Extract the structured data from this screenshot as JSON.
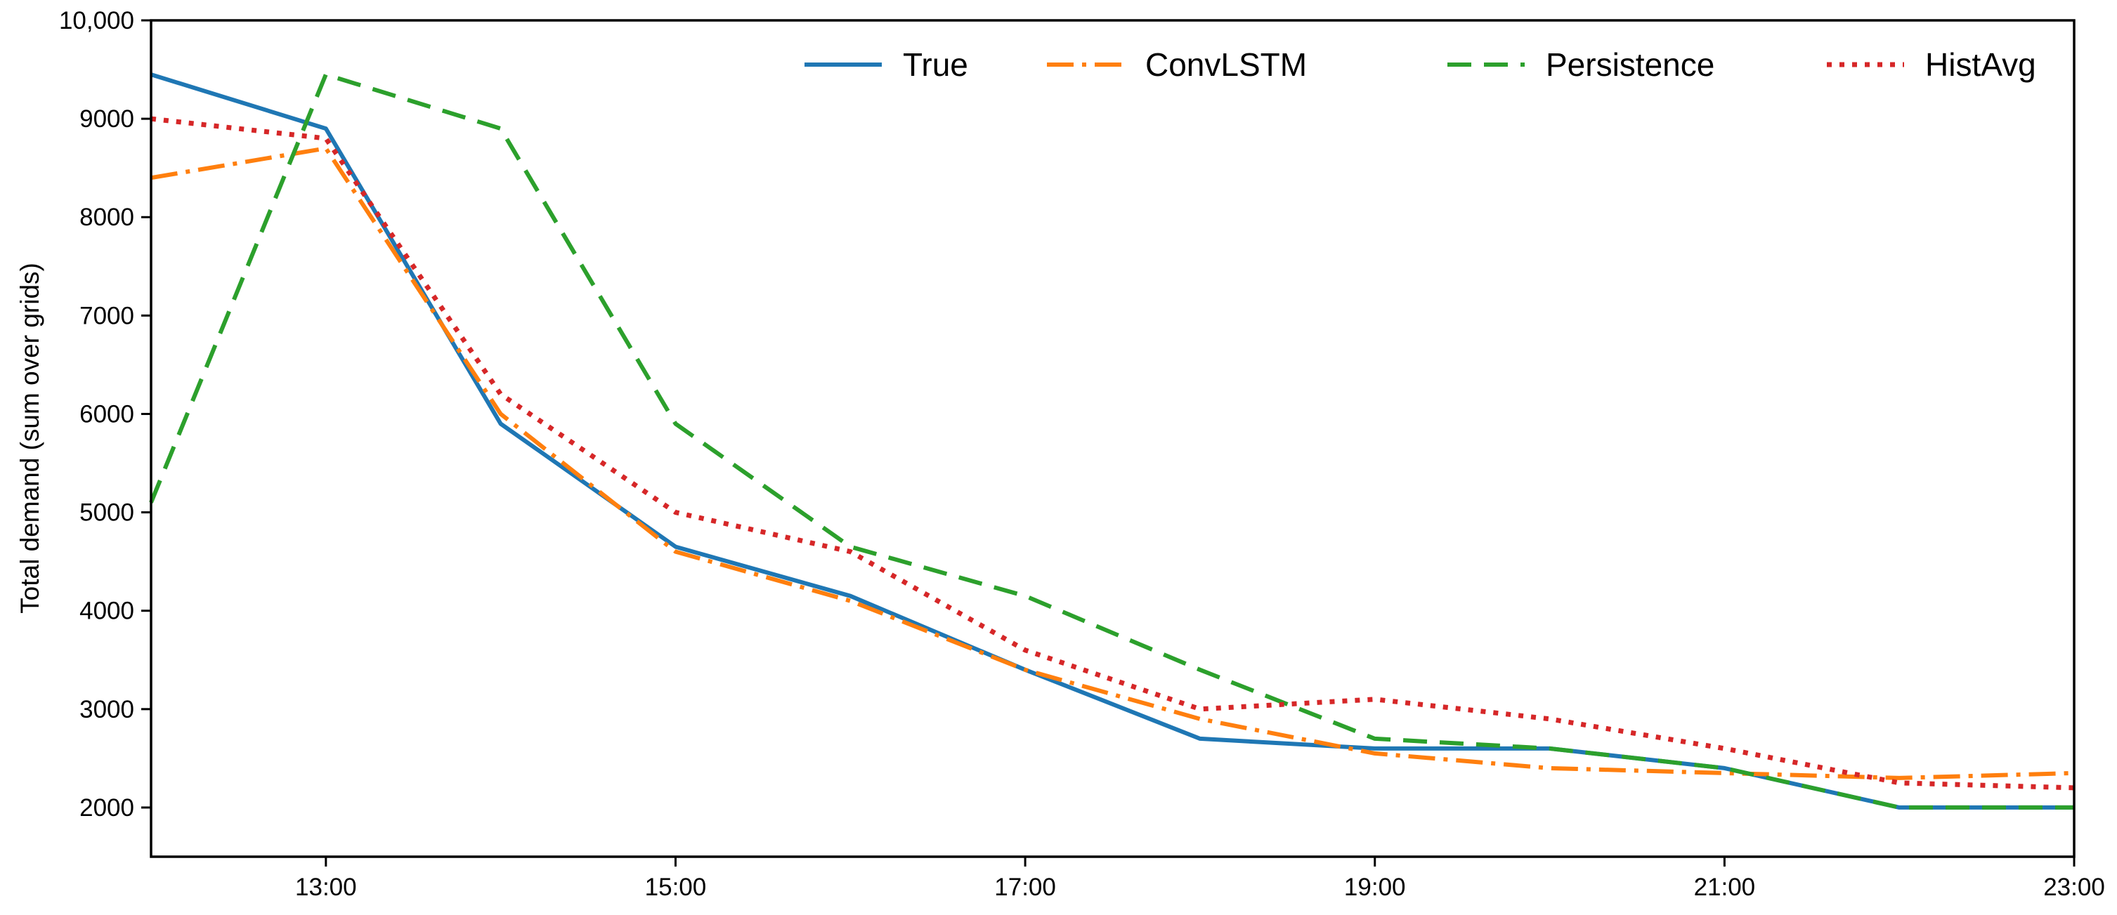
{
  "chart_data": {
    "type": "line",
    "title": "",
    "xlabel": "",
    "ylabel": "Total demand (sum over grids)",
    "x": [
      12,
      13,
      14,
      15,
      16,
      17,
      18,
      19,
      20,
      21,
      22,
      23
    ],
    "xlim": [
      12,
      23
    ],
    "ylim": [
      1500,
      10000
    ],
    "x_ticks": [
      {
        "value": 13,
        "label": "13:00"
      },
      {
        "value": 15,
        "label": "15:00"
      },
      {
        "value": 17,
        "label": "17:00"
      },
      {
        "value": 19,
        "label": "19:00"
      },
      {
        "value": 21,
        "label": "21:00"
      },
      {
        "value": 23,
        "label": "23:00"
      }
    ],
    "y_ticks": [
      {
        "value": 2000,
        "label": "2000"
      },
      {
        "value": 3000,
        "label": "3000"
      },
      {
        "value": 4000,
        "label": "4000"
      },
      {
        "value": 5000,
        "label": "5000"
      },
      {
        "value": 6000,
        "label": "6000"
      },
      {
        "value": 7000,
        "label": "7000"
      },
      {
        "value": 8000,
        "label": "8000"
      },
      {
        "value": 9000,
        "label": "9000"
      },
      {
        "value": 10000,
        "label": "10,000"
      }
    ],
    "grid": false,
    "legend": {
      "placement": "top-right",
      "columns": 4
    },
    "series": [
      {
        "name": "True",
        "color": "#1f77b4",
        "style": "solid",
        "values": [
          9450,
          8900,
          5900,
          4650,
          4150,
          3400,
          2700,
          2600,
          2600,
          2400,
          2000,
          2000
        ]
      },
      {
        "name": "ConvLSTM",
        "color": "#ff7f0e",
        "style": "dashdot",
        "values": [
          8400,
          8700,
          6000,
          4600,
          4100,
          3400,
          2900,
          2550,
          2400,
          2350,
          2300,
          2350
        ]
      },
      {
        "name": "Persistence",
        "color": "#2ca02c",
        "style": "dashed",
        "values": [
          5100,
          9450,
          8900,
          5900,
          4650,
          4150,
          3400,
          2700,
          2600,
          2400,
          2000,
          2000
        ]
      },
      {
        "name": "HistAvg",
        "color": "#d62728",
        "style": "dotted",
        "values": [
          9000,
          8800,
          6200,
          5000,
          4600,
          3600,
          3000,
          3100,
          2900,
          2600,
          2250,
          2200
        ]
      }
    ]
  }
}
